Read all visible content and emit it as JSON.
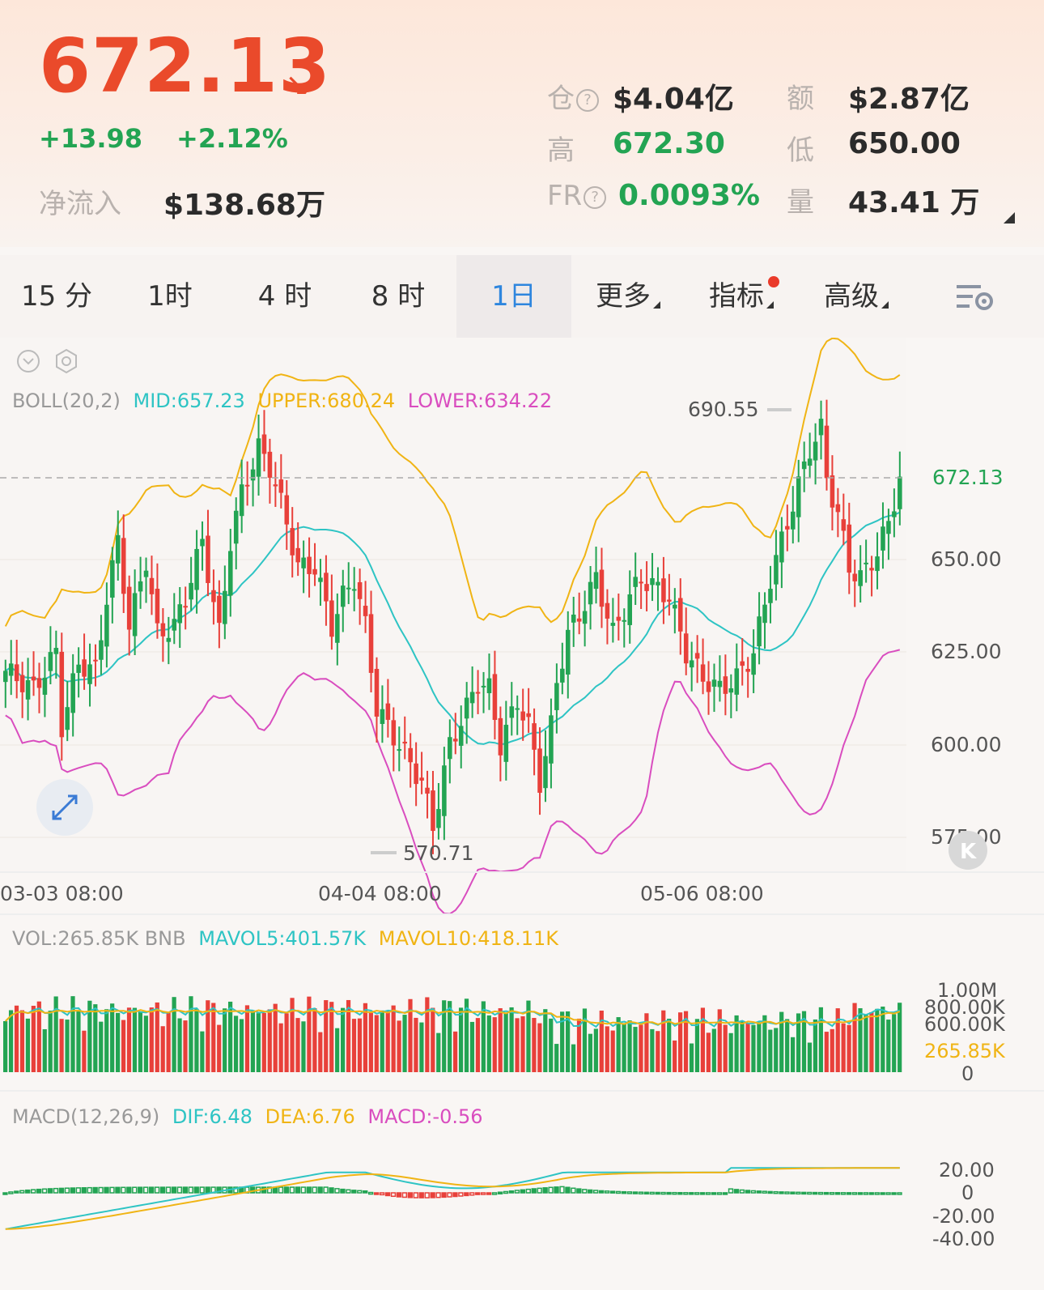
{
  "header": {
    "price": "672.13",
    "change_abs": "+13.98",
    "change_pct": "+2.12%",
    "net_inflow_label": "净流入",
    "net_inflow_value": "$138.68万",
    "open_interest_label": "仓",
    "open_interest_value": "$4.04亿",
    "turnover_label": "额",
    "turnover_value": "$2.87亿",
    "high_label": "高",
    "high_value": "672.30",
    "low_label": "低",
    "low_value": "650.00",
    "fr_label": "FR",
    "fr_value": "0.0093%",
    "volume_label": "量",
    "volume_value": "43.41 万"
  },
  "tabs": [
    {
      "label": "15 分"
    },
    {
      "label": "1时"
    },
    {
      "label": "4 时"
    },
    {
      "label": "8 时"
    },
    {
      "label": "1日",
      "active": true
    },
    {
      "label": "更多"
    },
    {
      "label": "指标"
    },
    {
      "label": "高级"
    }
  ],
  "main_chart": {
    "boll_name": "BOLL(20,2)",
    "boll_mid": "MID:657.23",
    "boll_upper": "UPPER:680.24",
    "boll_lower": "LOWER:634.22",
    "high_marker": "690.55",
    "low_marker": "570.71",
    "current_price_tag": "672.13",
    "y_ticks": [
      "650.00",
      "625.00",
      "600.00",
      "575.00"
    ],
    "x_ticks": [
      "03-03 08:00",
      "04-04 08:00",
      "05-06 08:00"
    ]
  },
  "volume_chart": {
    "name": "VOL:265.85K BNB",
    "mavol5": "MAVOL5:401.57K",
    "mavol10": "MAVOL10:418.11K",
    "y_ticks": [
      "1.00M",
      "800.00K",
      "600.00K",
      "0"
    ],
    "current_tag": "265.85K"
  },
  "macd_chart": {
    "name": "MACD(12,26,9)",
    "dif": "DIF:6.48",
    "dea": "DEA:6.76",
    "macd": "MACD:-0.56",
    "y_ticks": [
      "20.00",
      "0",
      "-20.00",
      "-40.00"
    ]
  },
  "colors": {
    "up": "#23a453",
    "down": "#e8403a",
    "mid": "#2ec4c4",
    "upper": "#f0b414",
    "lower": "#d94dbf",
    "price_red": "#ea4a2b",
    "active_tab": "#2e86de"
  },
  "icons": [
    "down-right-arrow-icon",
    "help-icon",
    "settings-list-icon",
    "collapse-icon",
    "gear-icon",
    "expand-icon",
    "k-icon"
  ]
}
